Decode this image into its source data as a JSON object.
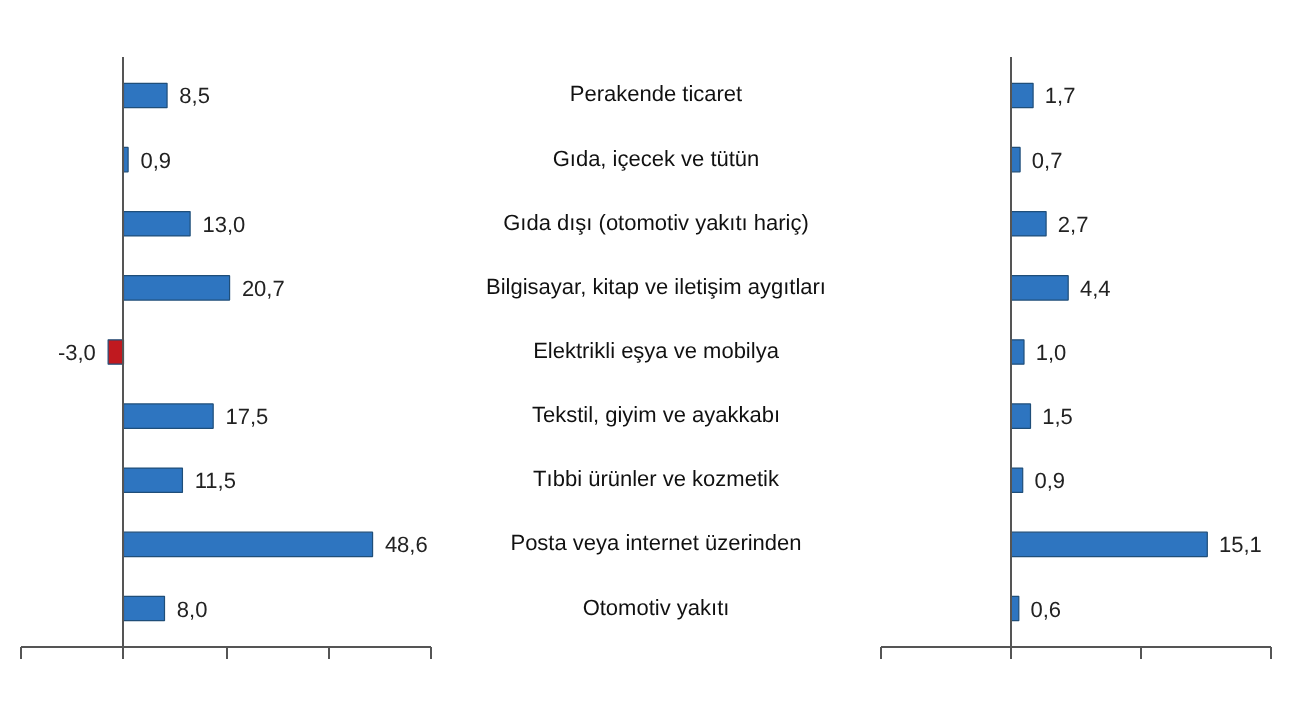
{
  "chart_data": [
    {
      "type": "bar",
      "orientation": "horizontal",
      "categories": [
        "Perakende ticaret",
        "Gıda, içecek ve tütün",
        "Gıda dışı (otomotiv yakıtı hariç)",
        "Bilgisayar, kitap ve iletişim aygıtları",
        "Elektrikli eşya ve mobilya",
        "Tekstil, giyim ve ayakkabı",
        "Tıbbi ürünler ve kozmetik",
        "Posta veya internet üzerinden",
        "Otomotiv yakıtı"
      ],
      "values": [
        8.5,
        0.9,
        13.0,
        20.7,
        -3.0,
        17.5,
        11.5,
        48.6,
        8.0
      ],
      "colors": [
        "#2e75c0",
        "#2e75c0",
        "#2e75c0",
        "#2e75c0",
        "#c0191f",
        "#2e75c0",
        "#2e75c0",
        "#2e75c0",
        "#2e75c0"
      ],
      "value_labels": [
        "8,5",
        "0,9",
        "13,0",
        "20,7",
        "-3,0",
        "17,5",
        "11,5",
        "48,6",
        "8,0"
      ],
      "xlim": [
        -20,
        60
      ],
      "xticks": [
        {
          "value": -20,
          "label": null
        },
        {
          "value": 0,
          "label": null
        },
        {
          "value": 20,
          "label": null
        },
        {
          "value": 40,
          "label": null
        },
        {
          "value": 60,
          "label": null
        }
      ]
    },
    {
      "type": "bar",
      "orientation": "horizontal",
      "categories": [
        null,
        null,
        null,
        null,
        null,
        null,
        null,
        null,
        null
      ],
      "values": [
        1.7,
        0.7,
        2.7,
        4.4,
        1.0,
        1.5,
        0.9,
        15.1,
        0.6
      ],
      "color": "#2e75c0",
      "value_labels": [
        "1,7",
        "0,7",
        "2,7",
        "4,4",
        "1,0",
        "1,5",
        "0,9",
        "15,1",
        "0,6"
      ],
      "xlim": [
        -10,
        20
      ],
      "xticks": [
        {
          "value": -10,
          "label": null
        },
        {
          "value": 0,
          "label": null
        },
        {
          "value": 10,
          "label": null
        },
        {
          "value": 20,
          "label": null
        }
      ]
    }
  ]
}
